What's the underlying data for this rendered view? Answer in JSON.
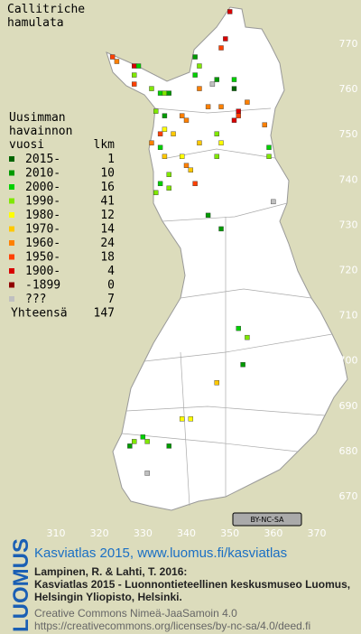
{
  "title": [
    "Callitriche",
    "hamulata"
  ],
  "legend": {
    "heading": [
      "Uusimman",
      "havainnon",
      "vuosi"
    ],
    "count_heading": "lkm",
    "rows": [
      {
        "label": "2015-",
        "count": 1,
        "color": "#006400"
      },
      {
        "label": "2010-",
        "count": 10,
        "color": "#009a00"
      },
      {
        "label": "2000-",
        "count": 16,
        "color": "#00d000"
      },
      {
        "label": "1990-",
        "count": 41,
        "color": "#80e800"
      },
      {
        "label": "1980-",
        "count": 12,
        "color": "#ffff00"
      },
      {
        "label": "1970-",
        "count": 14,
        "color": "#ffc800"
      },
      {
        "label": "1960-",
        "count": 24,
        "color": "#ff8000"
      },
      {
        "label": "1950-",
        "count": 18,
        "color": "#ff4000"
      },
      {
        "label": "1900-",
        "count": 4,
        "color": "#d80000"
      },
      {
        "label": "-1899",
        "count": 0,
        "color": "#900000"
      },
      {
        "label": "???",
        "count": 7,
        "color": "#c0c0c0"
      }
    ],
    "total_label": "Yhteensä",
    "total": 147
  },
  "xticks": [
    310,
    320,
    330,
    340,
    350,
    360,
    370
  ],
  "yticks": [
    670,
    680,
    690,
    700,
    710,
    720,
    730,
    740,
    750,
    760,
    770
  ],
  "points": [
    [
      350,
      777,
      8
    ],
    [
      349,
      771,
      8
    ],
    [
      348,
      769,
      7
    ],
    [
      323,
      767,
      7
    ],
    [
      324,
      766,
      6
    ],
    [
      328,
      765,
      8
    ],
    [
      328,
      763,
      3
    ],
    [
      329,
      765,
      2
    ],
    [
      328,
      761,
      7
    ],
    [
      332,
      760,
      3
    ],
    [
      334,
      759,
      2
    ],
    [
      335,
      759,
      3
    ],
    [
      336,
      759,
      1
    ],
    [
      342,
      767,
      1
    ],
    [
      343,
      765,
      3
    ],
    [
      342,
      763,
      2
    ],
    [
      343,
      760,
      6
    ],
    [
      347,
      762,
      1
    ],
    [
      351,
      762,
      2
    ],
    [
      351,
      760,
      0
    ],
    [
      348,
      756,
      6
    ],
    [
      352,
      755,
      8
    ],
    [
      352,
      754,
      7
    ],
    [
      351,
      753,
      8
    ],
    [
      354,
      757,
      6
    ],
    [
      358,
      752,
      6
    ],
    [
      359,
      747,
      2
    ],
    [
      359,
      745,
      3
    ],
    [
      339,
      754,
      6
    ],
    [
      340,
      753,
      6
    ],
    [
      335,
      754,
      1
    ],
    [
      333,
      755,
      3
    ],
    [
      335,
      751,
      4
    ],
    [
      334,
      750,
      7
    ],
    [
      337,
      750,
      5
    ],
    [
      332,
      748,
      6
    ],
    [
      334,
      747,
      2
    ],
    [
      335,
      745,
      5
    ],
    [
      339,
      745,
      4
    ],
    [
      340,
      743,
      6
    ],
    [
      341,
      742,
      5
    ],
    [
      336,
      741,
      3
    ],
    [
      334,
      739,
      2
    ],
    [
      336,
      738,
      3
    ],
    [
      333,
      737,
      3
    ],
    [
      342,
      739,
      7
    ],
    [
      345,
      732,
      1
    ],
    [
      347,
      750,
      3
    ],
    [
      348,
      748,
      4
    ],
    [
      347,
      745,
      3
    ],
    [
      345,
      756,
      6
    ],
    [
      343,
      748,
      5
    ],
    [
      360,
      735,
      10
    ],
    [
      348,
      729,
      1
    ],
    [
      352,
      707,
      2
    ],
    [
      354,
      705,
      3
    ],
    [
      353,
      699,
      1
    ],
    [
      347,
      695,
      5
    ],
    [
      341,
      687,
      4
    ],
    [
      339,
      687,
      4
    ],
    [
      327,
      681,
      1
    ],
    [
      328,
      682,
      3
    ],
    [
      330,
      683,
      2
    ],
    [
      331,
      682,
      3
    ],
    [
      336,
      681,
      1
    ],
    [
      331,
      675,
      10
    ],
    [
      346,
      761,
      10
    ]
  ],
  "badge": "BY-NC-SA",
  "footer": {
    "logo": "LUOMUS",
    "link": "Kasviatlas 2015, www.luomus.fi/kasviatlas",
    "citation": [
      "Lampinen, R. & Lahti, T. 2016:",
      "Kasviatlas 2015 - Luonnontieteellinen keskusmuseo Luomus,",
      "Helsingin Yliopisto, Helsinki."
    ],
    "license": [
      "Creative Commons Nimeä-JaaSamoin 4.0",
      "https://creativecommons.org/licenses/by-nc-sa/4.0/deed.fi"
    ]
  }
}
